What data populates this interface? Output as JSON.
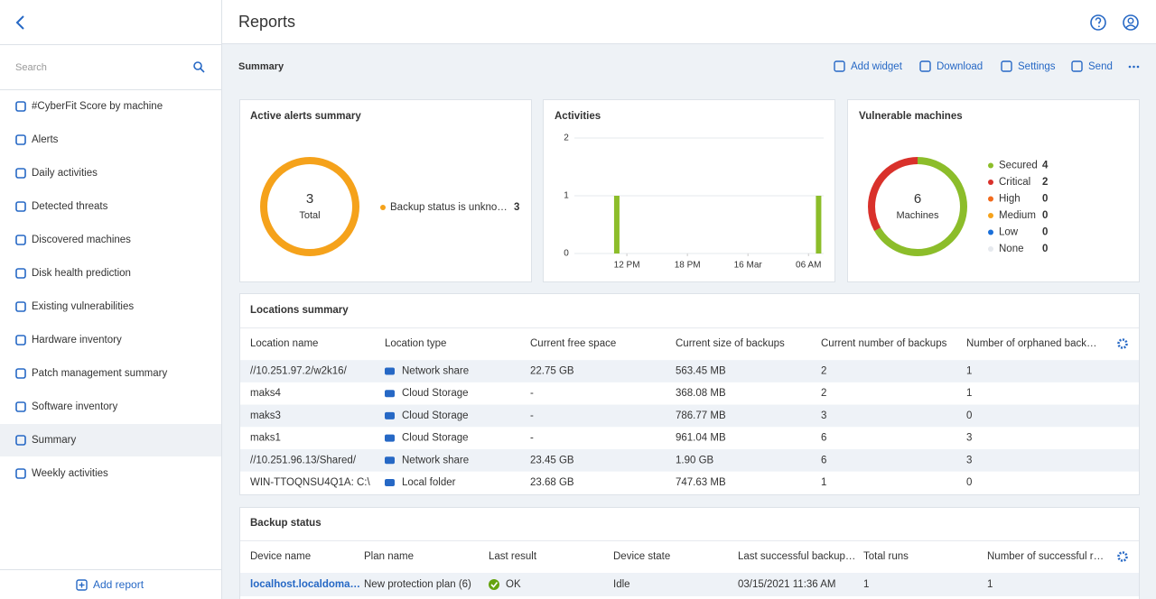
{
  "sidebar": {
    "search_placeholder": "Search",
    "items": [
      "#CyberFit Score by machine",
      "Alerts",
      "Daily activities",
      "Detected threats",
      "Discovered machines",
      "Disk health prediction",
      "Existing vulnerabilities",
      "Hardware inventory",
      "Patch management summary",
      "Software inventory",
      "Summary",
      "Weekly activities"
    ],
    "selected_item": 10,
    "add_report": "Add report"
  },
  "header": {
    "title": "Reports"
  },
  "toolbar": {
    "title": "Summary",
    "actions": [
      "Add widget",
      "Download",
      "Settings",
      "Send"
    ]
  },
  "widgets": {
    "alerts": {
      "title": "Active alerts summary",
      "total": 3,
      "total_label": "Total",
      "legend": [
        {
          "label": "Backup status is unkno…",
          "value": 3,
          "color": "#f5a21b"
        }
      ]
    },
    "activities": {
      "type": "bar",
      "title": "Activities",
      "x": [
        11,
        31
      ],
      "values": [
        1,
        1
      ],
      "color": "#8cbd2a",
      "xlim": [
        6.8,
        31.5
      ],
      "xticks": [
        {
          "value": 12,
          "label": "12 PM"
        },
        {
          "value": 18,
          "label": "18 PM"
        },
        {
          "value": 24,
          "label": "16 Mar"
        },
        {
          "value": 30,
          "label": "06 AM"
        }
      ],
      "ylim": [
        0,
        2
      ],
      "yticks": [
        0,
        1,
        2
      ],
      "grid": true
    },
    "vulnerable": {
      "title": "Vulnerable machines",
      "total": 6,
      "total_label": "Machines",
      "legend": [
        {
          "label": "Secured",
          "value": 4,
          "color": "#8cbd2a"
        },
        {
          "label": "Critical",
          "value": 2,
          "color": "#d9312b"
        },
        {
          "label": "High",
          "value": 0,
          "color": "#f26b1d"
        },
        {
          "label": "Medium",
          "value": 0,
          "color": "#f5a21b"
        },
        {
          "label": "Low",
          "value": 0,
          "color": "#1a6fd9"
        },
        {
          "label": "None",
          "value": 0,
          "color": "#e6e9ee"
        }
      ]
    }
  },
  "locations": {
    "title": "Locations summary",
    "columns": [
      "Location name",
      "Location type",
      "Current free space",
      "Current size of backups",
      "Current number of backups",
      "Number of orphaned back…"
    ],
    "rows": [
      [
        "//10.251.97.2/w2k16/",
        "Network share",
        "22.75 GB",
        "563.45 MB",
        "2",
        "1"
      ],
      [
        "maks4",
        "Cloud Storage",
        "-",
        "368.08 MB",
        "2",
        "1"
      ],
      [
        "maks3",
        "Cloud Storage",
        "-",
        "786.77 MB",
        "3",
        "0"
      ],
      [
        "maks1",
        "Cloud Storage",
        "-",
        "961.04 MB",
        "6",
        "3"
      ],
      [
        "//10.251.96.13/Shared/",
        "Network share",
        "23.45 GB",
        "1.90 GB",
        "6",
        "3"
      ],
      [
        "WIN-TTOQNSU4Q1A: C:\\",
        "Local folder",
        "23.68 GB",
        "747.63 MB",
        "1",
        "0"
      ]
    ]
  },
  "backup_status": {
    "title": "Backup status",
    "columns": [
      "Device name",
      "Plan name",
      "Last result",
      "Device state",
      "Last successful backup…",
      "Total runs",
      "Number of successful r…"
    ],
    "rows": [
      [
        "localhost.localdoma…",
        "New protection plan (6)",
        "OK",
        "Idle",
        "03/15/2021 11:36 AM",
        "1",
        "1"
      ]
    ]
  }
}
